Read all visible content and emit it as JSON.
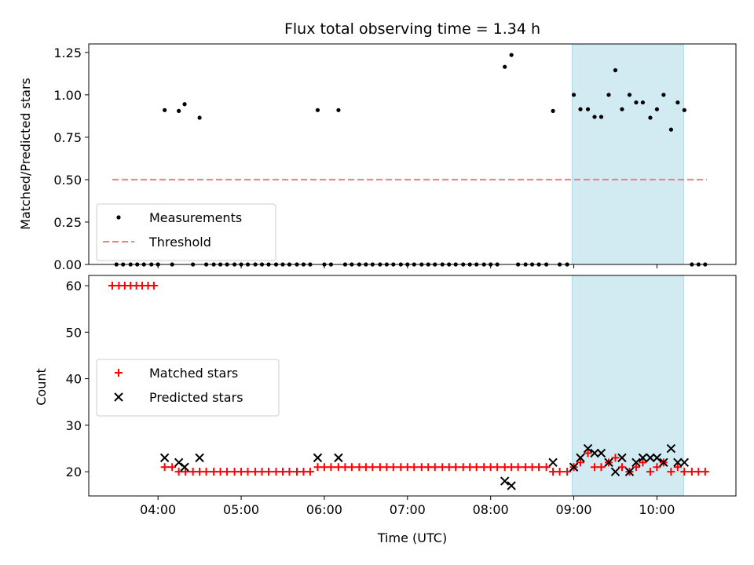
{
  "chart_data": {
    "title": "Flux total observing time = 1.34 h",
    "xlabel": "Time (UTC)",
    "x_unit": "hours UTC",
    "xlim": [
      3.167,
      10.95
    ],
    "x_ticks": [
      {
        "value": 4,
        "label": "04:00"
      },
      {
        "value": 5,
        "label": "05:00"
      },
      {
        "value": 6,
        "label": "06:00"
      },
      {
        "value": 7,
        "label": "07:00"
      },
      {
        "value": 8,
        "label": "08:00"
      },
      {
        "value": 9,
        "label": "09:00"
      },
      {
        "value": 10,
        "label": "10:00"
      }
    ],
    "shaded_span": {
      "x0": 8.98,
      "x1": 10.32,
      "color": "#add8e6"
    },
    "panels": [
      {
        "type": "scatter",
        "ylabel": "Matched/Predicted stars",
        "ylim": [
          0,
          1.3
        ],
        "y_ticks": [
          {
            "value": 0,
            "label": "0.00"
          },
          {
            "value": 0.25,
            "label": "0.25"
          },
          {
            "value": 0.5,
            "label": "0.50"
          },
          {
            "value": 0.75,
            "label": "0.75"
          },
          {
            "value": 1.0,
            "label": "1.00"
          },
          {
            "value": 1.25,
            "label": "1.25"
          }
        ],
        "series": [
          {
            "name": "Measurements",
            "marker": "dot",
            "color": "#000000",
            "x": [
              4.08,
              4.25,
              4.32,
              4.5,
              5.92,
              6.17,
              8.17,
              8.25,
              8.75,
              9.0,
              9.08,
              9.17,
              9.25,
              9.33,
              9.42,
              9.5,
              9.58,
              9.67,
              9.75,
              9.83,
              9.92,
              10.0,
              10.08,
              10.17,
              10.25,
              10.33
            ],
            "y": [
              0.91,
              0.905,
              0.945,
              0.865,
              0.91,
              0.91,
              1.165,
              1.235,
              0.905,
              1.0,
              0.915,
              0.915,
              0.87,
              0.87,
              1.0,
              1.145,
              0.915,
              1.0,
              0.955,
              0.955,
              0.865,
              0.915,
              1.0,
              0.795,
              0.955,
              0.91
            ]
          },
          {
            "name": "",
            "marker": "dot",
            "color": "#000000",
            "x": [
              3.5,
              3.58,
              3.67,
              3.75,
              3.83,
              3.92,
              4.0,
              4.17,
              4.42,
              4.58,
              4.67,
              4.75,
              4.83,
              4.92,
              5.0,
              5.08,
              5.17,
              5.25,
              5.33,
              5.42,
              5.5,
              5.58,
              5.67,
              5.75,
              5.83,
              6.0,
              6.08,
              6.25,
              6.33,
              6.42,
              6.5,
              6.58,
              6.67,
              6.75,
              6.83,
              6.92,
              7.0,
              7.08,
              7.17,
              7.25,
              7.33,
              7.42,
              7.5,
              7.58,
              7.67,
              7.75,
              7.83,
              7.92,
              8.0,
              8.08,
              8.33,
              8.42,
              8.5,
              8.58,
              8.67,
              8.83,
              8.92,
              10.42,
              10.5,
              10.58
            ],
            "y": [
              0,
              0,
              0,
              0,
              0,
              0,
              0,
              0,
              0,
              0,
              0,
              0,
              0,
              0,
              0,
              0,
              0,
              0,
              0,
              0,
              0,
              0,
              0,
              0,
              0,
              0,
              0,
              0,
              0,
              0,
              0,
              0,
              0,
              0,
              0,
              0,
              0,
              0,
              0,
              0,
              0,
              0,
              0,
              0,
              0,
              0,
              0,
              0,
              0,
              0,
              0,
              0,
              0,
              0,
              0,
              0,
              0,
              0,
              0,
              0
            ]
          },
          {
            "name": "Threshold",
            "marker": "dashed-line",
            "color": "#f08080",
            "x": [
              3.45,
              10.6
            ],
            "y": [
              0.5,
              0.5
            ]
          }
        ],
        "legend": "lower-left"
      },
      {
        "type": "scatter",
        "ylabel": "Count",
        "ylim": [
          14.8,
          62.2
        ],
        "y_ticks": [
          {
            "value": 20,
            "label": "20"
          },
          {
            "value": 30,
            "label": "30"
          },
          {
            "value": 40,
            "label": "40"
          },
          {
            "value": 50,
            "label": "50"
          },
          {
            "value": 60,
            "label": "60"
          }
        ],
        "series": [
          {
            "name": "Matched stars",
            "marker": "plus",
            "color": "#ff0000",
            "x": [
              3.45,
              3.53,
              3.6,
              3.67,
              3.74,
              3.81,
              3.88,
              3.95,
              4.08,
              4.17,
              4.25,
              4.33,
              4.42,
              4.5,
              4.58,
              4.67,
              4.75,
              4.83,
              4.92,
              5.0,
              5.08,
              5.17,
              5.25,
              5.33,
              5.42,
              5.5,
              5.58,
              5.67,
              5.75,
              5.83,
              5.92,
              6.0,
              6.08,
              6.17,
              6.25,
              6.33,
              6.42,
              6.5,
              6.58,
              6.67,
              6.75,
              6.83,
              6.92,
              7.0,
              7.08,
              7.17,
              7.25,
              7.33,
              7.42,
              7.5,
              7.58,
              7.67,
              7.75,
              7.83,
              7.92,
              8.0,
              8.08,
              8.17,
              8.25,
              8.33,
              8.42,
              8.5,
              8.58,
              8.67,
              8.75,
              8.83,
              8.92,
              9.0,
              9.08,
              9.17,
              9.25,
              9.33,
              9.42,
              9.5,
              9.58,
              9.67,
              9.75,
              9.83,
              9.92,
              10.0,
              10.08,
              10.17,
              10.25,
              10.33,
              10.42,
              10.5,
              10.58
            ],
            "y": [
              60,
              60,
              60,
              60,
              60,
              60,
              60,
              60,
              21,
              21,
              20,
              20,
              20,
              20,
              20,
              20,
              20,
              20,
              20,
              20,
              20,
              20,
              20,
              20,
              20,
              20,
              20,
              20,
              20,
              20,
              21,
              21,
              21,
              21,
              21,
              21,
              21,
              21,
              21,
              21,
              21,
              21,
              21,
              21,
              21,
              21,
              21,
              21,
              21,
              21,
              21,
              21,
              21,
              21,
              21,
              21,
              21,
              21,
              21,
              21,
              21,
              21,
              21,
              21,
              20,
              20,
              20,
              21,
              22,
              24,
              21,
              21,
              22,
              23,
              21,
              20,
              21,
              22,
              20,
              21,
              22,
              20,
              21,
              20,
              20,
              20,
              20
            ]
          },
          {
            "name": "Predicted stars",
            "marker": "x",
            "color": "#000000",
            "x": [
              4.08,
              4.25,
              4.32,
              4.5,
              5.92,
              6.17,
              8.17,
              8.25,
              8.75,
              9.0,
              9.08,
              9.17,
              9.25,
              9.33,
              9.42,
              9.5,
              9.58,
              9.67,
              9.75,
              9.83,
              9.92,
              10.0,
              10.08,
              10.17,
              10.25,
              10.33
            ],
            "y": [
              23,
              22,
              21,
              23,
              23,
              23,
              18,
              17,
              22,
              21,
              23,
              25,
              24,
              24,
              22,
              20,
              23,
              20,
              22,
              23,
              23,
              23,
              22,
              25,
              22,
              22
            ]
          }
        ],
        "legend": "center-left"
      }
    ]
  }
}
